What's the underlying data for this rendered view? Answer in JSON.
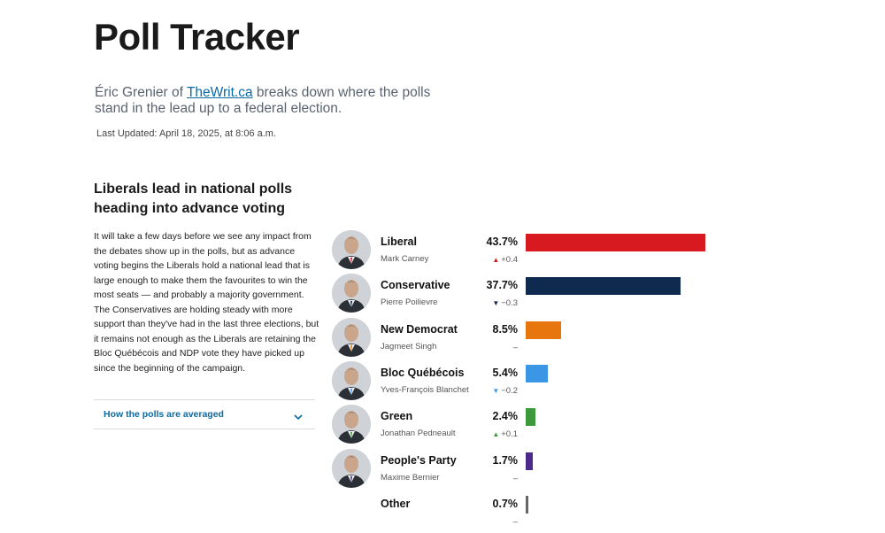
{
  "page": {
    "title": "Poll Tracker",
    "intro_prefix": "Éric Grenier of ",
    "intro_link": "TheWrit.ca",
    "intro_suffix": " breaks down where the polls stand in the lead up to a federal election.",
    "last_updated": "Last Updated: April 18, 2025, at 8:06 a.m."
  },
  "article": {
    "headline": "Liberals lead in national polls heading into advance voting",
    "body": "It will take a few days before we see any impact from the debates show up in the polls, but as advance voting begins the Liberals hold a national lead that is large enough to make them the favourites to win the most seats — and probably a majority government. The Conservatives are holding steady with more support than they've had in the last three elections, but it remains not enough as the Liberals are retaining the Bloc Québécois and NDP vote they have picked up since the beginning of the campaign.",
    "accordion_label": "How the polls are averaged"
  },
  "chart_data": {
    "type": "bar",
    "orientation": "horizontal",
    "xlim": [
      0,
      50
    ],
    "categories": [
      "Liberal",
      "Conservative",
      "New Democrat",
      "Bloc Québécois",
      "Green",
      "People's Party",
      "Other"
    ],
    "values": [
      43.7,
      37.7,
      8.5,
      5.4,
      2.4,
      1.7,
      0.7
    ],
    "value_labels": [
      "43.7%",
      "37.7%",
      "8.5%",
      "5.4%",
      "2.4%",
      "1.7%",
      "0.7%"
    ],
    "leaders": [
      "Mark Carney",
      "Pierre Poilievre",
      "Jagmeet Singh",
      "Yves-François Blanchet",
      "Jonathan Pedneault",
      "Maxime Bernier",
      ""
    ],
    "changes": [
      {
        "text": "+0.4",
        "dir": "up",
        "color": "#d71920"
      },
      {
        "text": "−0.3",
        "dir": "down",
        "color": "#0e2a4e"
      },
      {
        "text": "–",
        "dir": "none",
        "color": "#555555"
      },
      {
        "text": "−0.2",
        "dir": "down",
        "color": "#3b96e6"
      },
      {
        "text": "+0.1",
        "dir": "up",
        "color": "#3c9a3c"
      },
      {
        "text": "–",
        "dir": "none",
        "color": "#555555"
      },
      {
        "text": "–",
        "dir": "none",
        "color": "#555555"
      }
    ],
    "colors": [
      "#d71920",
      "#0e2a4e",
      "#e8760f",
      "#3b96e6",
      "#3c9a3c",
      "#4b2a8c",
      "#666666"
    ],
    "has_photo": [
      true,
      true,
      true,
      true,
      true,
      true,
      false
    ]
  }
}
